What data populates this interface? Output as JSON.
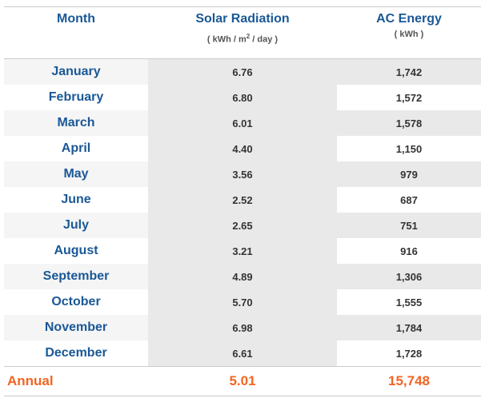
{
  "header": {
    "month": "Month",
    "solar": "Solar Radiation",
    "solar_unit_pre": "( kWh / m",
    "solar_unit_sup": "2",
    "solar_unit_post": " / day )",
    "ac": "AC Energy",
    "ac_unit": "( kWh )"
  },
  "rows": [
    {
      "month": "January",
      "solar": "6.76",
      "ac": "1,742"
    },
    {
      "month": "February",
      "solar": "6.80",
      "ac": "1,572"
    },
    {
      "month": "March",
      "solar": "6.01",
      "ac": "1,578"
    },
    {
      "month": "April",
      "solar": "4.40",
      "ac": "1,150"
    },
    {
      "month": "May",
      "solar": "3.56",
      "ac": "979"
    },
    {
      "month": "June",
      "solar": "2.52",
      "ac": "687"
    },
    {
      "month": "July",
      "solar": "2.65",
      "ac": "751"
    },
    {
      "month": "August",
      "solar": "3.21",
      "ac": "916"
    },
    {
      "month": "September",
      "solar": "4.89",
      "ac": "1,306"
    },
    {
      "month": "October",
      "solar": "5.70",
      "ac": "1,555"
    },
    {
      "month": "November",
      "solar": "6.98",
      "ac": "1,784"
    },
    {
      "month": "December",
      "solar": "6.61",
      "ac": "1,728"
    }
  ],
  "annual": {
    "label": "Annual",
    "solar": "5.01",
    "ac": "15,748"
  },
  "colors": {
    "month_text": "#1a5896",
    "annual_text": "#f26522",
    "row_shade": "#e9e9e9"
  }
}
